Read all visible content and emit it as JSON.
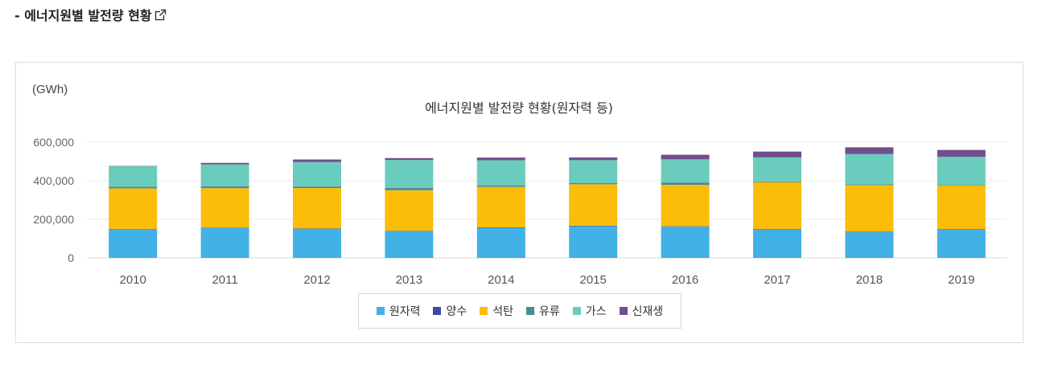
{
  "page": {
    "heading": "- 에너지원별 발전량 현황"
  },
  "chart_data": {
    "type": "bar",
    "stacked": true,
    "title": "에너지원별 발전량 현황(원자력 등)",
    "unit_label": "(GWh)",
    "xlabel": "",
    "ylabel": "",
    "ylim": [
      0,
      600000
    ],
    "yticks": [
      "0",
      "200,000",
      "400,000",
      "600,000"
    ],
    "ytick_values": [
      0,
      200000,
      400000,
      600000
    ],
    "grid": true,
    "legend_position": "bottom",
    "categories": [
      "2010",
      "2011",
      "2012",
      "2013",
      "2014",
      "2015",
      "2016",
      "2017",
      "2018",
      "2019"
    ],
    "series": [
      {
        "name": "원자력",
        "color": "#41b1e6",
        "values": [
          148596,
          154723,
          150327,
          138784,
          156407,
          164762,
          161995,
          148427,
          133505,
          145910
        ]
      },
      {
        "name": "양수",
        "color": "#3c4aa6",
        "values": [
          2000,
          2000,
          2000,
          2000,
          2000,
          2000,
          2000,
          2000,
          2000,
          2000
        ]
      },
      {
        "name": "석탄",
        "color": "#fbbd08",
        "values": [
          210000,
          205000,
          210000,
          210000,
          210000,
          215000,
          215000,
          242000,
          242000,
          228000
        ]
      },
      {
        "name": "유류",
        "color": "#4d8a97",
        "values": [
          8000,
          10000,
          8000,
          12000,
          8000,
          7000,
          12000,
          4000,
          4000,
          3000
        ]
      },
      {
        "name": "가스",
        "color": "#6accbd",
        "values": [
          107000,
          113000,
          127000,
          145000,
          130000,
          118000,
          120000,
          125000,
          157000,
          145000
        ]
      },
      {
        "name": "신재생",
        "color": "#714f8e",
        "values": [
          1500,
          8000,
          13000,
          10000,
          14000,
          14000,
          24000,
          30000,
          35000,
          36000
        ]
      }
    ]
  }
}
